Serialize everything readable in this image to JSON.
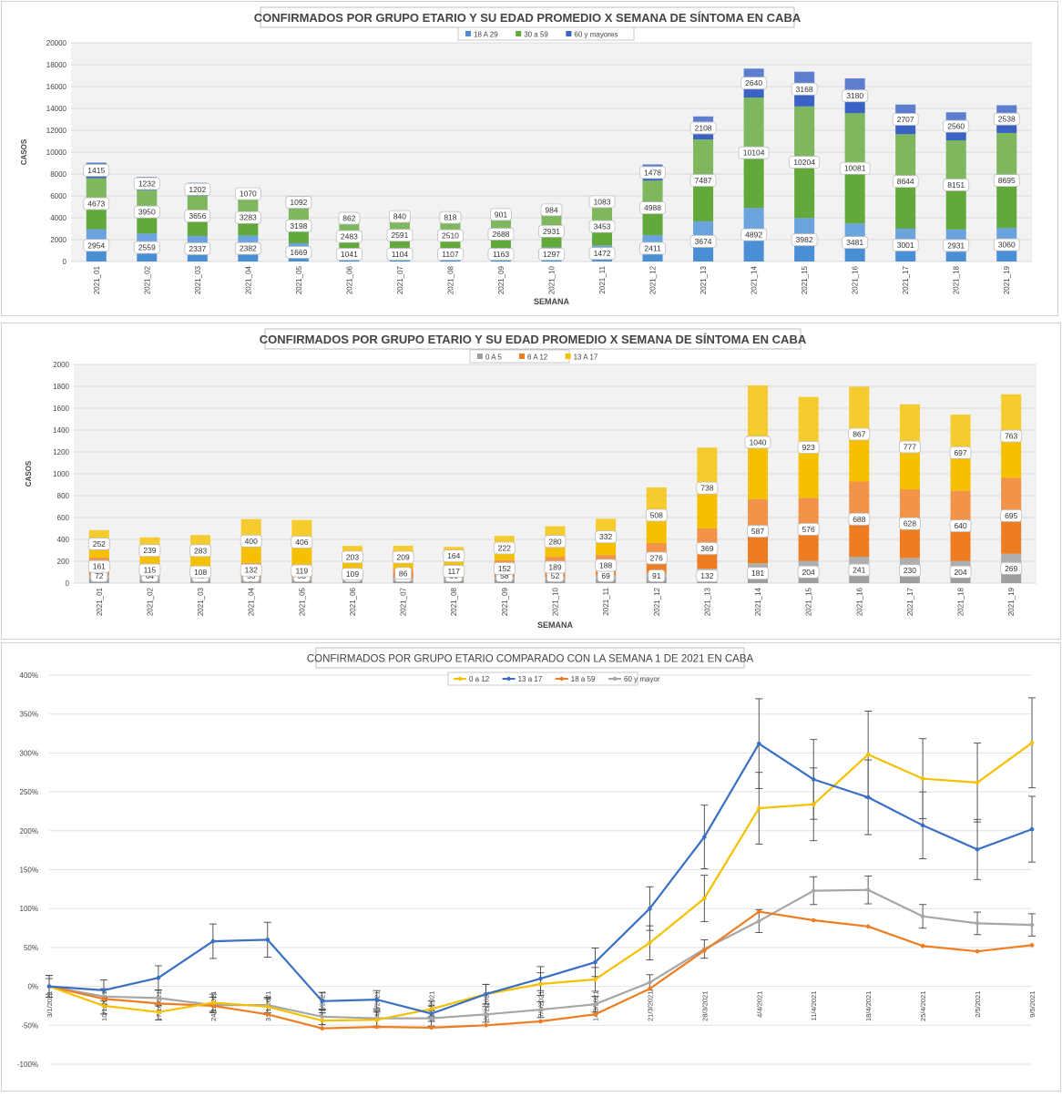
{
  "chart_data": [
    {
      "type": "bar",
      "stacked": true,
      "title": "CONFIRMADOS POR GRUPO ETARIO Y SU EDAD PROMEDIO X SEMANA DE SÍNTOMA EN CABA",
      "xlabel": "SEMANA",
      "ylabel": "CASOS",
      "ylim": [
        0,
        20000
      ],
      "yticks": [
        "0",
        "2000",
        "4000",
        "6000",
        "8000",
        "10000",
        "12000",
        "14000",
        "16000",
        "18000",
        "20000"
      ],
      "grid": true,
      "legend_position": "top",
      "categories": [
        "2021_01",
        "2021_02",
        "2021_03",
        "2021_04",
        "2021_05",
        "2021_06",
        "2021_07",
        "2021_08",
        "2021_09",
        "2021_10",
        "2021_11",
        "2021_12",
        "2021_13",
        "2021_14",
        "2021_15",
        "2021_16",
        "2021_17",
        "2021_18",
        "2021_19"
      ],
      "series": [
        {
          "name": "18 A 29",
          "color": "#4a8fd6",
          "values": [
            2954,
            2559,
            2337,
            2382,
            1669,
            1041,
            1104,
            1107,
            1163,
            1297,
            1472,
            2411,
            3674,
            4892,
            3982,
            3481,
            3001,
            2931,
            3060
          ]
        },
        {
          "name": "30 a 59",
          "color": "#62a83a",
          "values": [
            4673,
            3950,
            3656,
            3283,
            3198,
            2483,
            2591,
            2510,
            2688,
            2931,
            3453,
            4988,
            7487,
            10104,
            10204,
            10081,
            8644,
            8151,
            8695
          ]
        },
        {
          "name": "60 y mayores",
          "color": "#3a62c4",
          "values": [
            1415,
            1232,
            1202,
            1070,
            1092,
            862,
            840,
            818,
            901,
            984,
            1083,
            1478,
            2108,
            2640,
            3168,
            3180,
            2707,
            2560,
            2538
          ]
        }
      ]
    },
    {
      "type": "bar",
      "stacked": true,
      "title": "CONFIRMADOS POR GRUPO ETARIO Y SU EDAD PROMEDIO X SEMANA DE SÍNTOMA EN CABA",
      "xlabel": "SEMANA",
      "ylabel": "CASOS",
      "ylim": [
        0,
        2000
      ],
      "yticks": [
        "0",
        "200",
        "400",
        "600",
        "800",
        "1000",
        "1200",
        "1400",
        "1600",
        "1800",
        "2000"
      ],
      "grid": true,
      "legend_position": "top",
      "categories": [
        "2021_01",
        "2021_02",
        "2021_03",
        "2021_04",
        "2021_05",
        "2021_06",
        "2021_07",
        "2021_08",
        "2021_09",
        "2021_10",
        "2021_11",
        "2021_12",
        "2021_13",
        "2021_14",
        "2021_15",
        "2021_16",
        "2021_17",
        "2021_18",
        "2021_19"
      ],
      "series": [
        {
          "name": "0 A 5",
          "color": "#9e9e9e",
          "values": [
            72,
            64,
            48,
            53,
            53,
            28,
            46,
            50,
            58,
            52,
            69,
            91,
            132,
            181,
            204,
            241,
            230,
            204,
            269
          ]
        },
        {
          "name": "6 A 12",
          "color": "#ee7d22",
          "values": [
            161,
            115,
            108,
            132,
            119,
            109,
            86,
            117,
            152,
            189,
            188,
            276,
            369,
            587,
            576,
            688,
            628,
            640,
            695
          ]
        },
        {
          "name": "13 A 17",
          "color": "#f5c000",
          "values": [
            252,
            239,
            283,
            400,
            406,
            203,
            209,
            164,
            222,
            280,
            332,
            508,
            738,
            1040,
            923,
            867,
            777,
            697,
            763
          ]
        }
      ]
    },
    {
      "type": "line",
      "title": "CONFIRMADOS POR GRUPO ETARIO COMPARADO CON LA SEMANA 1 DE 2021 EN CABA",
      "ylim": [
        -100,
        400
      ],
      "yticks": [
        "-100%",
        "-50%",
        "0%",
        "50%",
        "100%",
        "150%",
        "200%",
        "250%",
        "300%",
        "350%",
        "400%"
      ],
      "grid": true,
      "legend_position": "top",
      "x": [
        "3/1/2021",
        "10/1/2021",
        "17/1/2021",
        "24/1/2021",
        "31/1/2021",
        "7/2/2021",
        "14/2/2021",
        "21/2/2021",
        "28/2/2021",
        "7/3/2021",
        "14/3/2021",
        "21/3/2021",
        "28/3/2021",
        "4/4/2021",
        "11/4/2021",
        "18/4/2021",
        "25/4/2021",
        "2/5/2021",
        "9/5/2021"
      ],
      "series": [
        {
          "name": "0 a 12",
          "color": "#f5c000",
          "values": [
            0,
            -25,
            -33,
            -21,
            -26,
            -44,
            -43,
            -29,
            -10,
            3,
            9,
            56,
            113,
            229,
            234,
            298,
            267,
            262,
            313
          ]
        },
        {
          "name": "13 a 17",
          "color": "#3a6fc4",
          "values": [
            0,
            -5,
            11,
            58,
            60,
            -19,
            -17,
            -35,
            -10,
            10,
            31,
            100,
            192,
            312,
            266,
            243,
            207,
            176,
            202
          ]
        },
        {
          "name": "18 a 59",
          "color": "#ee7d22",
          "values": [
            0,
            -16,
            -22,
            -25,
            -36,
            -54,
            -52,
            -53,
            -50,
            -45,
            -36,
            -3,
            46,
            96,
            85,
            77,
            52,
            45,
            53
          ]
        },
        {
          "name": "60 y mayor",
          "color": "#a6a6a6",
          "values": [
            0,
            -13,
            -15,
            -24,
            -24,
            -39,
            -41,
            -41,
            -36,
            -30,
            -23,
            5,
            48,
            84,
            123,
            124,
            90,
            81,
            79
          ]
        }
      ]
    }
  ]
}
